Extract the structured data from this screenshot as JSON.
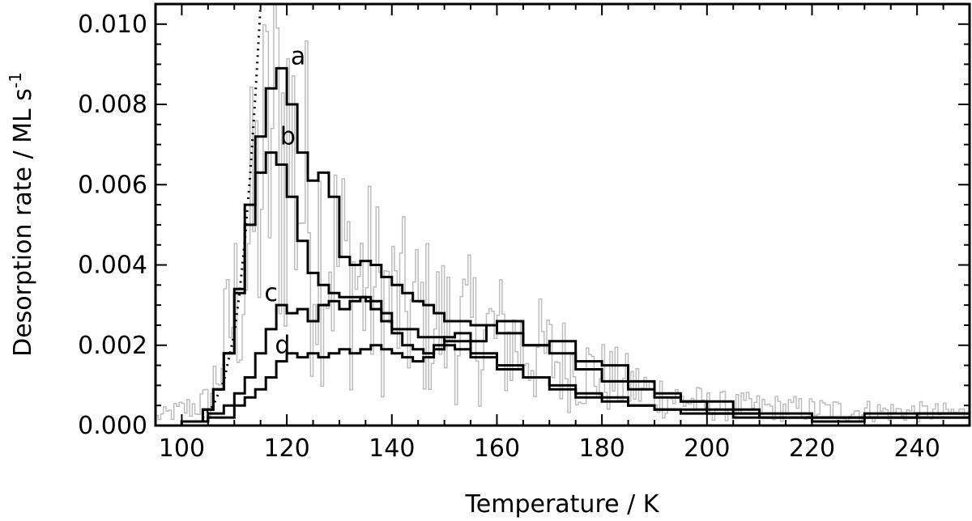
{
  "chart_data": {
    "type": "line",
    "title": "",
    "xlabel": "Temperature / K",
    "ylabel_main": "Desorption rate / ML s",
    "ylabel_sup": "-1",
    "xlim": [
      95,
      250
    ],
    "ylim": [
      0,
      0.0105
    ],
    "x_ticks": [
      100,
      120,
      140,
      160,
      180,
      200,
      220,
      240
    ],
    "x_tick_labels": [
      "100",
      "120",
      "140",
      "160",
      "180",
      "200",
      "220",
      "240"
    ],
    "y_ticks": [
      0,
      0.002,
      0.004,
      0.006,
      0.008,
      0.01
    ],
    "y_tick_labels": [
      "0.000",
      "0.002",
      "0.004",
      "0.006",
      "0.008",
      "0.010"
    ],
    "grid": false,
    "legend": "none",
    "curve_labels": [
      {
        "text": "a",
        "x": 119.5,
        "y": 0.009
      },
      {
        "text": "b",
        "x": 117.5,
        "y": 0.007
      },
      {
        "text": "c",
        "x": 114.5,
        "y": 0.0031
      },
      {
        "text": "d",
        "x": 116.5,
        "y": 0.0018
      }
    ],
    "series": [
      {
        "label": "a",
        "x": [
          95,
          100,
          104,
          106,
          108,
          110,
          112,
          114,
          116,
          118,
          120,
          122,
          124,
          126,
          128,
          130,
          132,
          134,
          136,
          138,
          140,
          142,
          144,
          146,
          148,
          150,
          155,
          160,
          165,
          170,
          175,
          180,
          185,
          190,
          195,
          200,
          205,
          210,
          220,
          230,
          240,
          250
        ],
        "y": [
          0.0,
          0.0001,
          0.0004,
          0.0009,
          0.0018,
          0.0034,
          0.0055,
          0.0072,
          0.0084,
          0.0089,
          0.008,
          0.0068,
          0.0061,
          0.0063,
          0.0057,
          0.0042,
          0.004,
          0.0041,
          0.004,
          0.0037,
          0.0035,
          0.0033,
          0.0031,
          0.003,
          0.0028,
          0.0026,
          0.0025,
          0.0023,
          0.002,
          0.0018,
          0.0014,
          0.0011,
          0.0009,
          0.0007,
          0.0006,
          0.0006,
          0.0004,
          0.0003,
          0.0002,
          0.0003,
          0.0003,
          0.0002
        ]
      },
      {
        "label": "b",
        "x": [
          95,
          100,
          104,
          106,
          108,
          110,
          112,
          114,
          116,
          118,
          120,
          122,
          124,
          126,
          128,
          130,
          132,
          135,
          138,
          140,
          145,
          150,
          155,
          160,
          165,
          170,
          175,
          180,
          185,
          190,
          195,
          200,
          205,
          210,
          220,
          230,
          240,
          250
        ],
        "y": [
          0.0,
          0.0001,
          0.0004,
          0.0009,
          0.0018,
          0.0033,
          0.005,
          0.0063,
          0.0068,
          0.0065,
          0.0057,
          0.0046,
          0.0038,
          0.0035,
          0.0033,
          0.0032,
          0.0032,
          0.0031,
          0.0028,
          0.0024,
          0.0022,
          0.0021,
          0.0018,
          0.0014,
          0.0012,
          0.0009,
          0.0007,
          0.0006,
          0.0005,
          0.0004,
          0.0003,
          0.0003,
          0.0002,
          0.0002,
          0.0001,
          0.0002,
          0.0002,
          0.0001
        ]
      },
      {
        "label": "c",
        "x": [
          95,
          100,
          105,
          108,
          110,
          112,
          114,
          116,
          118,
          120,
          122,
          124,
          126,
          128,
          130,
          132,
          134,
          136,
          138,
          140,
          142,
          144,
          146,
          148,
          150,
          152,
          155,
          158,
          160,
          165,
          170,
          175,
          180,
          185,
          190,
          195,
          200,
          205,
          210,
          220,
          230,
          240,
          250
        ],
        "y": [
          0.0,
          0.0001,
          0.0003,
          0.0005,
          0.0008,
          0.0012,
          0.0018,
          0.0024,
          0.003,
          0.0028,
          0.0029,
          0.0026,
          0.003,
          0.0031,
          0.0029,
          0.0031,
          0.0032,
          0.0029,
          0.0026,
          0.0023,
          0.002,
          0.0019,
          0.0018,
          0.002,
          0.0022,
          0.0023,
          0.0021,
          0.0025,
          0.0026,
          0.002,
          0.0021,
          0.0016,
          0.0015,
          0.0011,
          0.0008,
          0.0006,
          0.0004,
          0.0003,
          0.0002,
          0.0002,
          0.0002,
          0.0003,
          0.0002
        ]
      },
      {
        "label": "d",
        "x": [
          95,
          100,
          105,
          110,
          112,
          114,
          116,
          118,
          120,
          122,
          124,
          126,
          128,
          130,
          132,
          134,
          136,
          138,
          140,
          142,
          144,
          146,
          148,
          150,
          152,
          155,
          160,
          165,
          170,
          175,
          180,
          185,
          190,
          195,
          200,
          205,
          210,
          220,
          230,
          240,
          250
        ],
        "y": [
          0.0,
          0.0001,
          0.0002,
          0.0005,
          0.0007,
          0.0009,
          0.0012,
          0.0016,
          0.0018,
          0.0017,
          0.0018,
          0.0017,
          0.0018,
          0.0019,
          0.0018,
          0.0019,
          0.002,
          0.0019,
          0.0018,
          0.0017,
          0.0016,
          0.0017,
          0.0019,
          0.002,
          0.0019,
          0.0017,
          0.0015,
          0.0012,
          0.001,
          0.0008,
          0.0007,
          0.0005,
          0.0004,
          0.0004,
          0.0003,
          0.0003,
          0.0002,
          0.0002,
          0.0002,
          0.0002,
          0.0002
        ]
      },
      {
        "label": "dotted",
        "style": "dotted",
        "x": [
          104,
          106,
          108,
          110,
          111,
          112,
          113,
          114,
          114.5,
          115
        ],
        "y": [
          0.0002,
          0.0005,
          0.0011,
          0.0023,
          0.0033,
          0.0046,
          0.0062,
          0.0082,
          0.0093,
          0.0105
        ]
      },
      {
        "label": "noisy",
        "style": "histogram-noise",
        "envelope_x": [
          95,
          105,
          110,
          115,
          118,
          120,
          125,
          130,
          140,
          150,
          160,
          170,
          180,
          190,
          200,
          220,
          250
        ],
        "envelope_y": [
          0.0002,
          0.0006,
          0.003,
          0.006,
          0.0075,
          0.007,
          0.005,
          0.004,
          0.003,
          0.0025,
          0.0022,
          0.0017,
          0.0012,
          0.0008,
          0.0005,
          0.0004,
          0.0003
        ]
      }
    ],
    "colors": {
      "main_line": "#000000",
      "noise_line": "#bdbdbd",
      "axes": "#000000"
    }
  }
}
